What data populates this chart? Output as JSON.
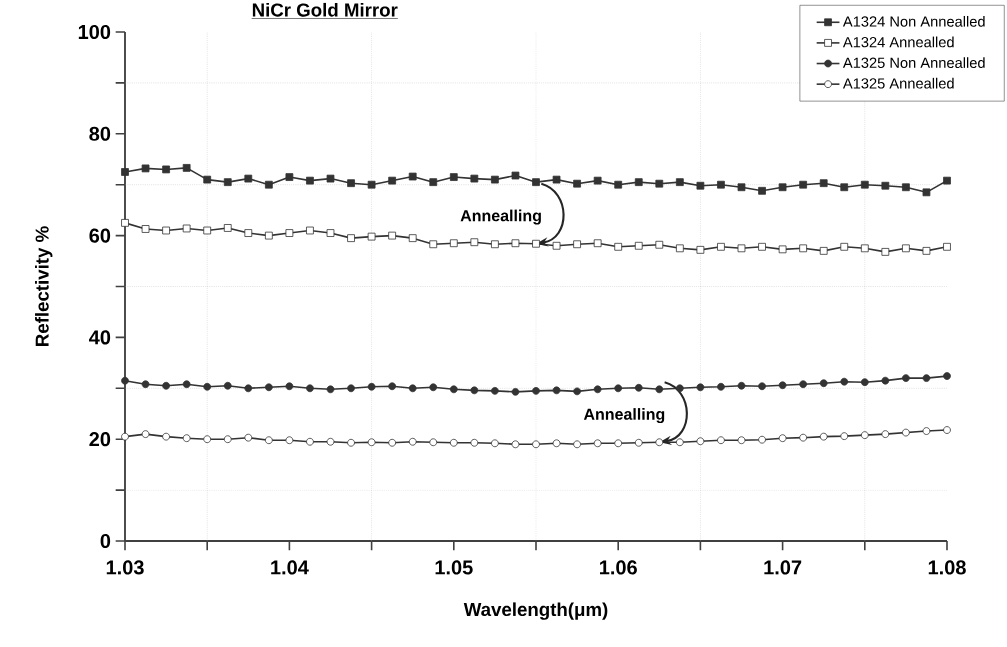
{
  "chart_data": {
    "type": "line",
    "title": "NiCr Gold Mirror",
    "xlabel": "Wavelength(μm)",
    "ylabel": "Reflectivity %",
    "x": [
      1.03,
      1.03125,
      1.0325,
      1.03375,
      1.035,
      1.03625,
      1.0375,
      1.03875,
      1.04,
      1.04125,
      1.0425,
      1.04375,
      1.045,
      1.04625,
      1.0475,
      1.04875,
      1.05,
      1.05125,
      1.0525,
      1.05375,
      1.055,
      1.05625,
      1.0575,
      1.05875,
      1.06,
      1.06125,
      1.0625,
      1.06375,
      1.065,
      1.06625,
      1.0675,
      1.06875,
      1.07,
      1.07125,
      1.0725,
      1.07375,
      1.075,
      1.07625,
      1.0775,
      1.07875,
      1.08
    ],
    "series": [
      {
        "name": "A1324 Non Annealled",
        "color": "#333333",
        "marker": "square",
        "values": [
          72.5,
          73.2,
          73.0,
          73.3,
          71.0,
          70.5,
          71.2,
          70.0,
          71.5,
          70.8,
          71.2,
          70.3,
          70.0,
          70.8,
          71.6,
          70.5,
          71.5,
          71.2,
          71.0,
          71.8,
          70.5,
          71.0,
          70.2,
          70.8,
          70.0,
          70.5,
          70.2,
          70.5,
          69.8,
          70.0,
          69.5,
          68.8,
          69.5,
          70.0,
          70.3,
          69.5,
          70.0,
          69.8,
          69.5,
          68.5,
          70.8
        ]
      },
      {
        "name": "A1324 Annealled",
        "color": "#333333",
        "marker": "square",
        "values": [
          62.5,
          61.3,
          61.0,
          61.4,
          61.0,
          61.5,
          60.5,
          60.0,
          60.5,
          61.0,
          60.5,
          59.5,
          59.8,
          60.0,
          59.5,
          58.3,
          58.5,
          58.7,
          58.3,
          58.5,
          58.4,
          58.0,
          58.3,
          58.5,
          57.8,
          58.0,
          58.2,
          57.5,
          57.2,
          57.8,
          57.5,
          57.8,
          57.3,
          57.5,
          57.0,
          57.8,
          57.5,
          56.8,
          57.5,
          57.0,
          57.8
        ]
      },
      {
        "name": "A1325 Non Annealled",
        "color": "#333333",
        "marker": "circle",
        "values": [
          31.5,
          30.8,
          30.5,
          30.8,
          30.3,
          30.5,
          30.0,
          30.2,
          30.4,
          30.0,
          29.8,
          30.0,
          30.3,
          30.4,
          30.0,
          30.2,
          29.8,
          29.6,
          29.5,
          29.3,
          29.5,
          29.6,
          29.4,
          29.8,
          30.0,
          30.1,
          29.8,
          30.0,
          30.2,
          30.3,
          30.5,
          30.4,
          30.6,
          30.8,
          31.0,
          31.3,
          31.2,
          31.5,
          32.0,
          32.0,
          32.4
        ]
      },
      {
        "name": "A1325 Annealled",
        "color": "#333333",
        "marker": "circle",
        "values": [
          20.5,
          21.0,
          20.5,
          20.2,
          20.0,
          20.0,
          20.3,
          19.8,
          19.8,
          19.5,
          19.5,
          19.3,
          19.4,
          19.3,
          19.5,
          19.4,
          19.3,
          19.3,
          19.2,
          19.0,
          19.0,
          19.2,
          19.0,
          19.2,
          19.2,
          19.3,
          19.4,
          19.4,
          19.6,
          19.8,
          19.8,
          19.9,
          20.2,
          20.3,
          20.5,
          20.6,
          20.8,
          21.0,
          21.3,
          21.6,
          21.8
        ]
      }
    ],
    "xlim": [
      1.03,
      1.08
    ],
    "xticks": [
      1.03,
      {
        "value": 1.035,
        "label": null
      },
      1.04,
      {
        "value": 1.045,
        "label": null
      },
      1.05,
      {
        "value": 1.055,
        "label": null
      },
      1.06,
      {
        "value": 1.065,
        "label": null
      },
      1.07,
      {
        "value": 1.075,
        "label": null
      },
      1.08
    ],
    "ylim": [
      0,
      100
    ],
    "yticks": [
      0,
      {
        "value": 10,
        "label": null
      },
      20,
      {
        "value": 30,
        "label": null
      },
      40,
      {
        "value": 50,
        "label": null
      },
      60,
      {
        "value": 70,
        "label": null
      },
      80,
      {
        "value": 90,
        "label": null
      },
      100
    ],
    "grid": true,
    "legend": "top right",
    "line_style": "solid",
    "annotations": [
      {
        "text": "Annealling",
        "x": 1.055,
        "y": 58.4
      },
      {
        "text": "Annealling",
        "x": 1.0625,
        "y": 19.4
      }
    ]
  }
}
